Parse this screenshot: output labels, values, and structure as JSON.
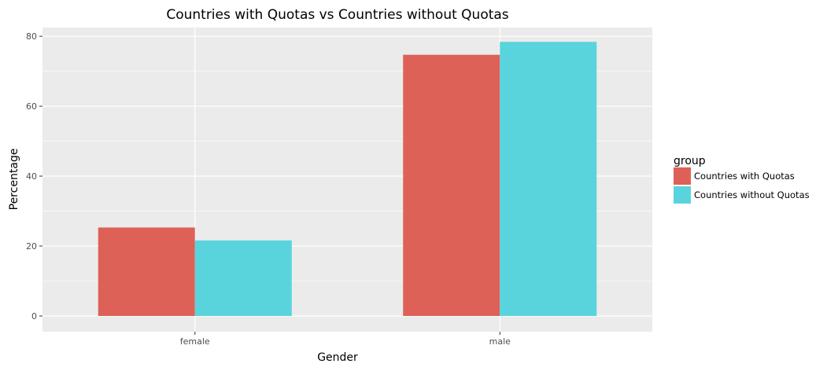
{
  "chart_data": {
    "type": "bar",
    "title": "Countries with Quotas vs Countries without Quotas",
    "xlabel": "Gender",
    "ylabel": "Percentage",
    "categories": [
      "female",
      "male"
    ],
    "series": [
      {
        "name": "Countries with Quotas",
        "values": [
          25.3,
          74.7
        ],
        "color": "#dd6157"
      },
      {
        "name": "Countries without Quotas",
        "values": [
          21.6,
          78.4
        ],
        "color": "#59d4dc"
      }
    ],
    "ylim": [
      -4.5,
      82.5
    ],
    "yticks": [
      0,
      20,
      40,
      60,
      80
    ],
    "grid": true,
    "panel_background": "#ebebeb",
    "legend": {
      "title": "group",
      "position": "right"
    }
  }
}
